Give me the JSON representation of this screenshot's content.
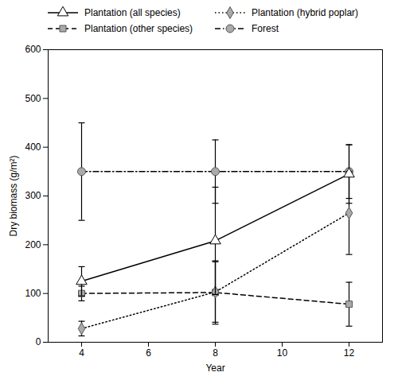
{
  "chart_data": {
    "type": "line",
    "xlabel": "Year",
    "ylabel": "Dry biomass (g/m²)",
    "x": [
      4,
      8,
      12
    ],
    "series": [
      {
        "name": "Plantation (all species)",
        "color": "#000000",
        "line_style": "solid",
        "marker": "triangle-open",
        "values": [
          125,
          208,
          345
        ],
        "errors": [
          30,
          110,
          60
        ]
      },
      {
        "name": "Plantation (hybrid poplar)",
        "color": "#000000",
        "line_style": "dotted",
        "marker": "diamond",
        "values": [
          28,
          103,
          265
        ],
        "errors": [
          15,
          62,
          85
        ]
      },
      {
        "name": "Plantation (other species)",
        "color": "#000000",
        "line_style": "dashed",
        "marker": "square",
        "values": [
          100,
          102,
          78
        ],
        "errors": [
          15,
          65,
          45
        ]
      },
      {
        "name": "Forest",
        "color": "#000000",
        "line_style": "dashdot",
        "marker": "circle",
        "values": [
          350,
          350,
          350
        ],
        "errors": [
          100,
          65,
          55
        ]
      }
    ],
    "xlim": [
      3,
      13
    ],
    "xticks": [
      4,
      6,
      8,
      10,
      12
    ],
    "ylim": [
      0,
      600
    ],
    "yticks": [
      0,
      100,
      200,
      300,
      400,
      500,
      600
    ],
    "grid": false,
    "legend": "upper left"
  }
}
